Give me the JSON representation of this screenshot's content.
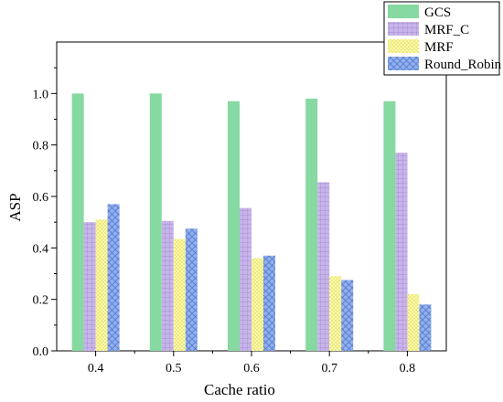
{
  "chart_data": {
    "type": "bar",
    "title": "",
    "xlabel": "Cache ratio",
    "ylabel": "ASP",
    "categories": [
      "0.4",
      "0.5",
      "0.6",
      "0.7",
      "0.8"
    ],
    "ylim": [
      0.0,
      1.2
    ],
    "yticks": [
      "0.0",
      "0.2",
      "0.4",
      "0.6",
      "0.8",
      "1.0"
    ],
    "grid": false,
    "legend_position": "top-right",
    "series": [
      {
        "name": "GCS",
        "color": "#86d9a0",
        "pattern": "solid",
        "values": [
          1.0,
          1.0,
          0.97,
          0.98,
          0.97
        ]
      },
      {
        "name": "MRF_C",
        "color": "#c8b4ea",
        "pattern": "grid",
        "values": [
          0.5,
          0.505,
          0.555,
          0.655,
          0.77
        ]
      },
      {
        "name": "MRF",
        "color": "#fbfba4",
        "pattern": "dots",
        "values": [
          0.51,
          0.435,
          0.36,
          0.29,
          0.22
        ]
      },
      {
        "name": "Round_Robin",
        "color": "#8fb0f0",
        "pattern": "crosshatch",
        "values": [
          0.57,
          0.475,
          0.37,
          0.275,
          0.18
        ]
      }
    ]
  }
}
